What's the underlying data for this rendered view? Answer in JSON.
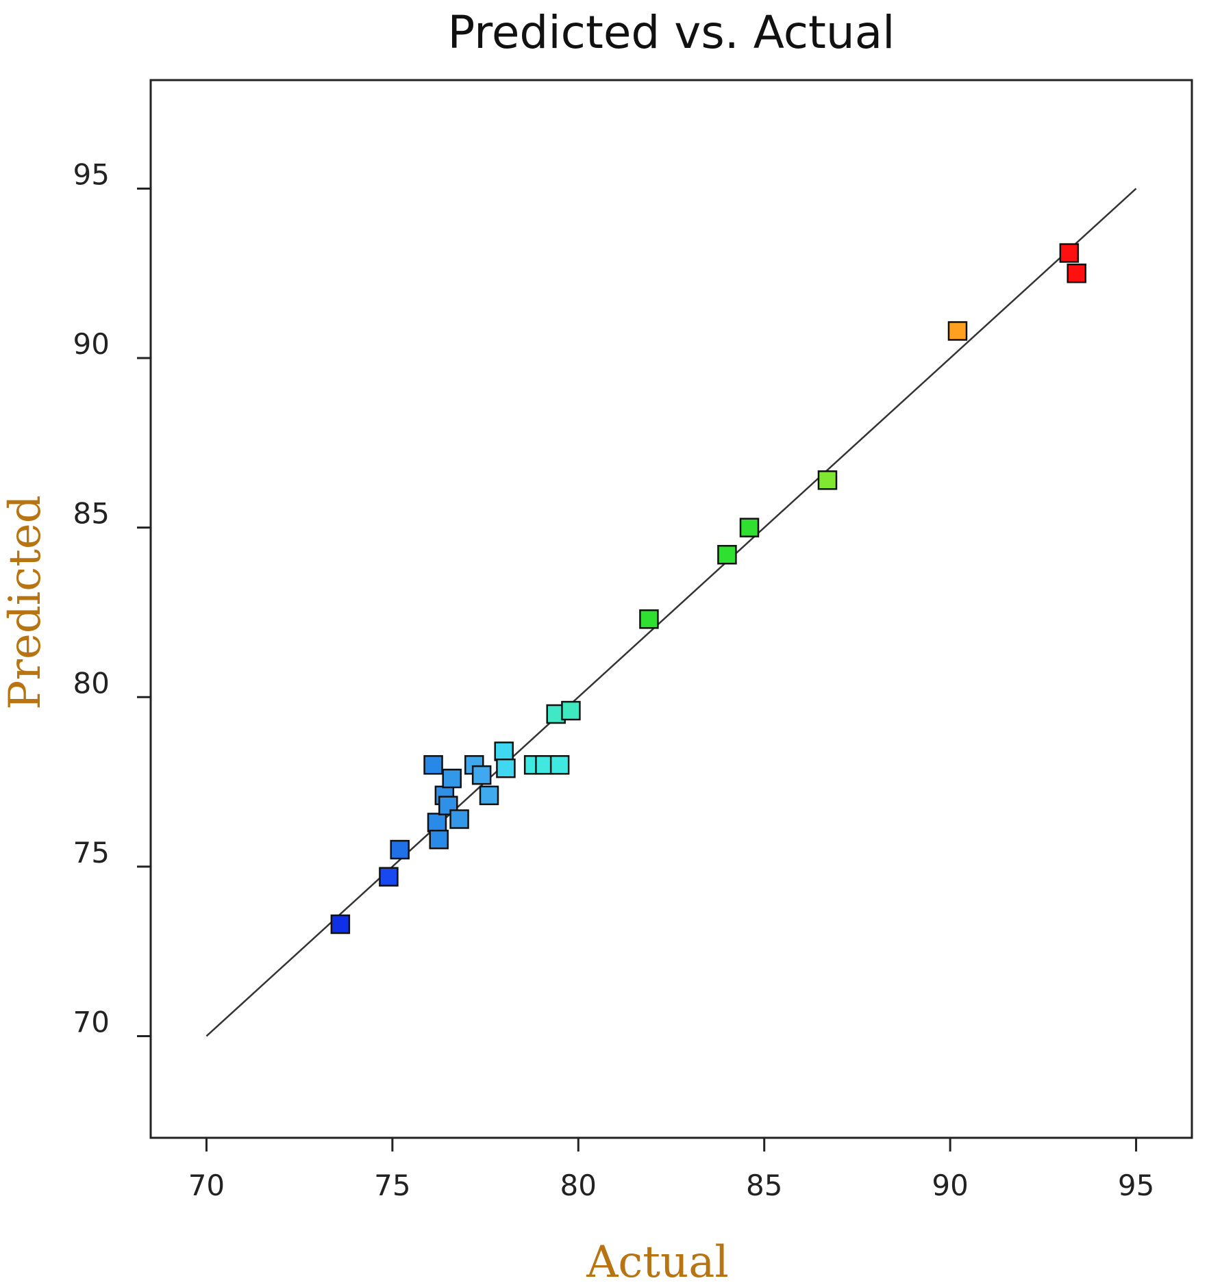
{
  "chart_data": {
    "type": "scatter",
    "title": "Predicted vs. Actual",
    "xlabel": "Actual",
    "ylabel": "Predicted",
    "xlim": [
      68.5,
      96.5
    ],
    "ylim": [
      67.0,
      98.2
    ],
    "xticks": [
      "70",
      "75",
      "80",
      "85",
      "90",
      "95"
    ],
    "yticks": [
      "70",
      "75",
      "80",
      "85",
      "90",
      "95"
    ],
    "xtick_values": [
      70,
      75,
      80,
      85,
      90,
      95
    ],
    "ytick_values": [
      70,
      75,
      80,
      85,
      90,
      95
    ],
    "reference_line": {
      "x": [
        70,
        95
      ],
      "y": [
        70,
        95
      ]
    },
    "grid": false,
    "legend": "none",
    "label_color": "#B87410",
    "points": [
      {
        "x": 73.6,
        "y": 73.3,
        "color": "#1030E8"
      },
      {
        "x": 74.9,
        "y": 74.7,
        "color": "#1848F0"
      },
      {
        "x": 75.2,
        "y": 75.5,
        "color": "#2070E8"
      },
      {
        "x": 76.1,
        "y": 78.0,
        "color": "#2888E8"
      },
      {
        "x": 76.2,
        "y": 76.3,
        "color": "#2A8AE8"
      },
      {
        "x": 76.25,
        "y": 75.8,
        "color": "#2A8AE8"
      },
      {
        "x": 76.4,
        "y": 77.1,
        "color": "#3090E8"
      },
      {
        "x": 76.5,
        "y": 76.8,
        "color": "#3090E8"
      },
      {
        "x": 76.6,
        "y": 77.6,
        "color": "#3398E8"
      },
      {
        "x": 76.8,
        "y": 76.4,
        "color": "#3398E8"
      },
      {
        "x": 77.2,
        "y": 78.0,
        "color": "#40A8EE"
      },
      {
        "x": 77.4,
        "y": 77.7,
        "color": "#40A8EE"
      },
      {
        "x": 77.6,
        "y": 77.1,
        "color": "#40AAEE"
      },
      {
        "x": 78.0,
        "y": 78.4,
        "color": "#40D8F0"
      },
      {
        "x": 78.05,
        "y": 77.9,
        "color": "#40D8F0"
      },
      {
        "x": 78.8,
        "y": 78.0,
        "color": "#40E8E0"
      },
      {
        "x": 79.1,
        "y": 78.0,
        "color": "#40E8E0"
      },
      {
        "x": 79.5,
        "y": 78.0,
        "color": "#40E8E0"
      },
      {
        "x": 79.4,
        "y": 79.5,
        "color": "#40E8C8"
      },
      {
        "x": 79.8,
        "y": 79.6,
        "color": "#40E8C0"
      },
      {
        "x": 81.9,
        "y": 82.3,
        "color": "#30E030"
      },
      {
        "x": 84.0,
        "y": 84.2,
        "color": "#30E030"
      },
      {
        "x": 84.6,
        "y": 85.0,
        "color": "#30E030"
      },
      {
        "x": 86.7,
        "y": 86.4,
        "color": "#80E830"
      },
      {
        "x": 90.2,
        "y": 90.8,
        "color": "#FFA020"
      },
      {
        "x": 93.2,
        "y": 93.1,
        "color": "#FF1010"
      },
      {
        "x": 93.4,
        "y": 92.5,
        "color": "#FF1010"
      }
    ]
  }
}
